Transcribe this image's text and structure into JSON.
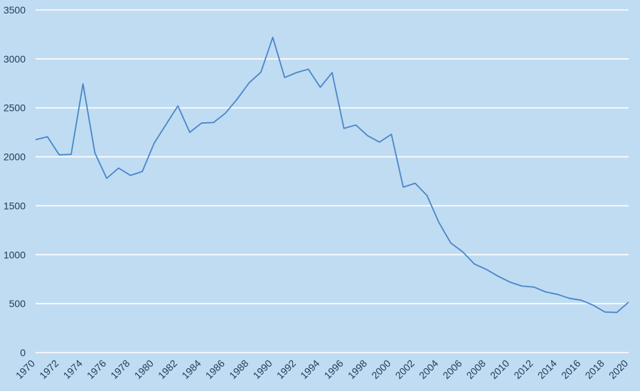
{
  "chart_data": {
    "type": "line",
    "title": "",
    "xlabel": "",
    "ylabel": "",
    "ylim": [
      0,
      3500
    ],
    "yticks": [
      0,
      500,
      1000,
      1500,
      2000,
      2500,
      3000,
      3500
    ],
    "xtick_labels": [
      "1970",
      "1972",
      "1974",
      "1976",
      "1978",
      "1980",
      "1982",
      "1984",
      "1986",
      "1988",
      "1990",
      "1992",
      "1994",
      "1996",
      "1998",
      "2000",
      "2002",
      "2004",
      "2006",
      "2008",
      "2010",
      "2012",
      "2014",
      "2016",
      "2018",
      "2020"
    ],
    "grid": "horizontal",
    "legend": "none",
    "colors": {
      "background": "#c0dcf2",
      "gridline": "#ffffff",
      "line": "#4a86c8",
      "text": "#1f3a5a"
    },
    "series": [
      {
        "x": [
          1970,
          1971,
          1972,
          1973,
          1974,
          1975,
          1976,
          1977,
          1978,
          1979,
          1980,
          1981,
          1982,
          1983,
          1984,
          1985,
          1986,
          1987,
          1988,
          1989,
          1990,
          1991,
          1992,
          1993,
          1994,
          1995,
          1996,
          1997,
          1998,
          1999,
          2000,
          2001,
          2002,
          2003,
          2004,
          2005,
          2006,
          2007,
          2008,
          2009,
          2010,
          2011,
          2012,
          2013,
          2014,
          2015,
          2016,
          2017,
          2018,
          2019,
          2020
        ],
        "values": [
          2175,
          2205,
          2020,
          2025,
          2745,
          2040,
          1780,
          1885,
          1810,
          1850,
          2140,
          2330,
          2520,
          2250,
          2345,
          2350,
          2445,
          2590,
          2755,
          2865,
          3220,
          2810,
          2860,
          2895,
          2710,
          2860,
          2290,
          2325,
          2215,
          2150,
          2230,
          1690,
          1730,
          1605,
          1330,
          1120,
          1030,
          905,
          850,
          780,
          720,
          680,
          670,
          620,
          595,
          555,
          535,
          485,
          415,
          410,
          515
        ]
      }
    ]
  }
}
